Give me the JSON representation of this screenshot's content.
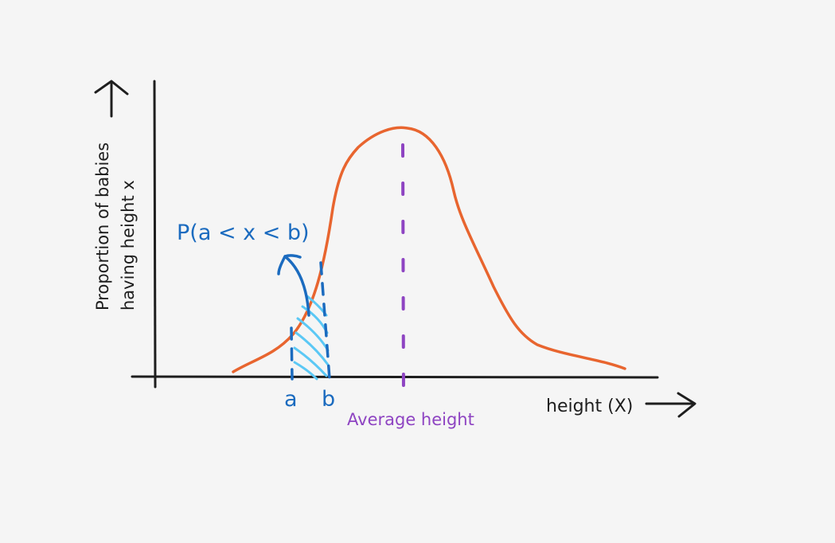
{
  "labels": {
    "y_axis_line1": "Proportion of babies",
    "y_axis_line2": "having height x",
    "x_axis": "height (X)",
    "average": "Average height",
    "probability": "P(a < x < b)",
    "marker_a": "a",
    "marker_b": "b"
  },
  "colors": {
    "background": "#f5f5f5",
    "axes": "#1e1e1e",
    "curve": "#e8652f",
    "average_line": "#8e44c2",
    "interval": "#1b6bbf",
    "hatch": "#5bc8f5"
  }
}
